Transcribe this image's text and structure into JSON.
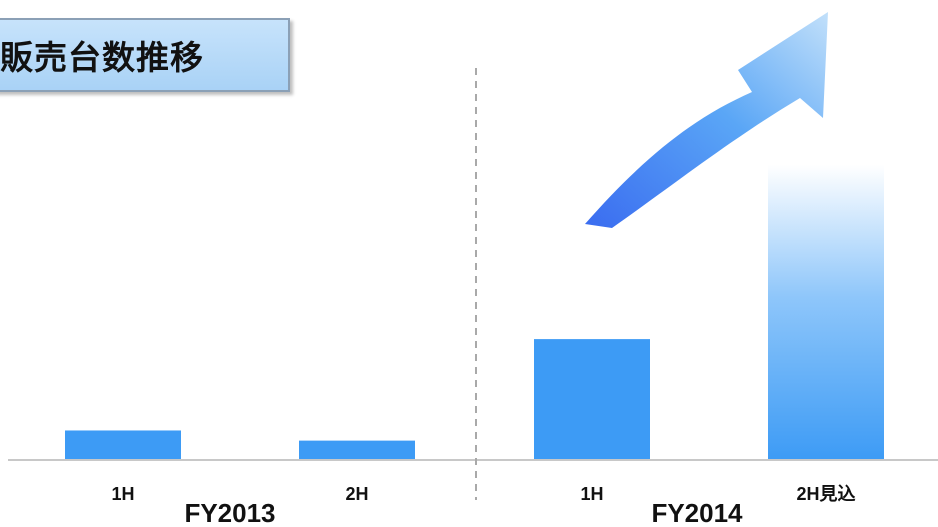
{
  "chart_data": {
    "type": "bar",
    "title": "販売台数推移",
    "categories": [
      "1H",
      "2H",
      "1H",
      "2H見込"
    ],
    "groups": [
      {
        "label": "FY2013",
        "categories": [
          0,
          1
        ]
      },
      {
        "label": "FY2014",
        "categories": [
          2,
          3
        ]
      }
    ],
    "values": [
      32,
      21,
      131,
      320
    ],
    "projected": [
      false,
      false,
      false,
      true
    ],
    "ylim": [
      0,
      350
    ],
    "xlabel": "",
    "ylabel": "",
    "grid": false,
    "colors": {
      "bar": "#3d9bf5",
      "projection_top": "#ffffff",
      "axis": "#c8c8c8",
      "divider": "#a9a9a9",
      "arrow_start": "#3d6ff0",
      "arrow_end": "#b8dcf8"
    }
  }
}
